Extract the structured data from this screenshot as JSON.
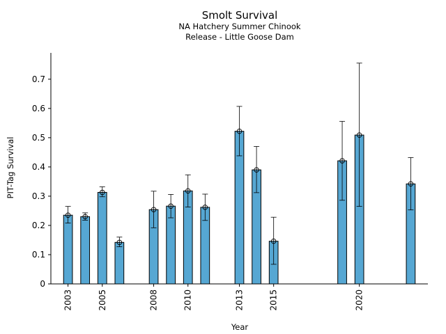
{
  "chart_data": {
    "type": "bar",
    "title": "Smolt Survival",
    "subtitle_lines": [
      "NA Hatchery Summer Chinook",
      "Release - Little Goose Dam"
    ],
    "xlabel": "Year",
    "ylabel": "PIT-Tag Survival",
    "xlim": [
      2002,
      2024
    ],
    "ylim": [
      0,
      0.79
    ],
    "yticks": [
      0,
      0.1,
      0.2,
      0.3,
      0.4,
      0.5,
      0.6,
      0.7
    ],
    "xticks": [
      2003,
      2005,
      2008,
      2010,
      2013,
      2015,
      2020
    ],
    "bar_color": "#56a7d3",
    "grid": false,
    "bars": [
      {
        "year": 2003,
        "value": 0.235,
        "lower": 0.208,
        "upper": 0.265
      },
      {
        "year": 2004,
        "value": 0.23,
        "lower": 0.218,
        "upper": 0.243
      },
      {
        "year": 2005,
        "value": 0.313,
        "lower": 0.298,
        "upper": 0.332
      },
      {
        "year": 2006,
        "value": 0.142,
        "lower": 0.127,
        "upper": 0.16
      },
      {
        "year": 2008,
        "value": 0.254,
        "lower": 0.192,
        "upper": 0.317
      },
      {
        "year": 2009,
        "value": 0.266,
        "lower": 0.226,
        "upper": 0.306
      },
      {
        "year": 2010,
        "value": 0.318,
        "lower": 0.263,
        "upper": 0.373
      },
      {
        "year": 2011,
        "value": 0.262,
        "lower": 0.217,
        "upper": 0.307
      },
      {
        "year": 2013,
        "value": 0.522,
        "lower": 0.438,
        "upper": 0.607
      },
      {
        "year": 2014,
        "value": 0.39,
        "lower": 0.312,
        "upper": 0.47
      },
      {
        "year": 2015,
        "value": 0.146,
        "lower": 0.067,
        "upper": 0.228
      },
      {
        "year": 2019,
        "value": 0.421,
        "lower": 0.286,
        "upper": 0.556
      },
      {
        "year": 2020,
        "value": 0.509,
        "lower": 0.265,
        "upper": 0.755
      },
      {
        "year": 2023,
        "value": 0.342,
        "lower": 0.253,
        "upper": 0.432
      }
    ]
  }
}
